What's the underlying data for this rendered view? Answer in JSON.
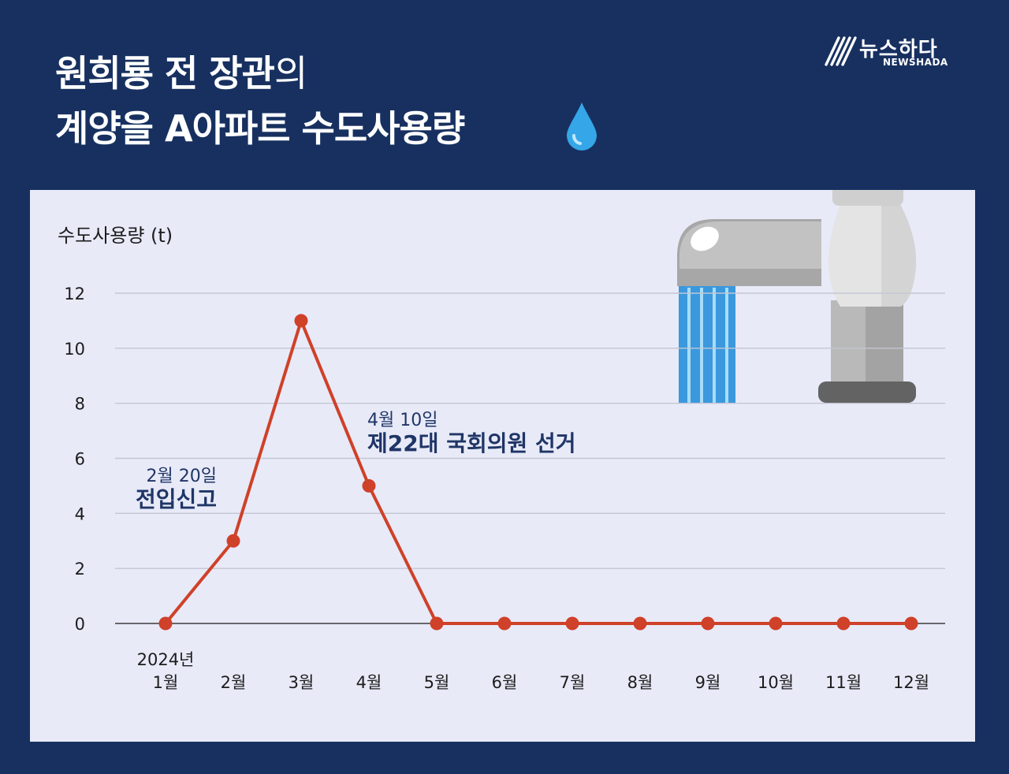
{
  "header": {
    "title_line1_bold": "원희룡 전 장관",
    "title_line1_light": "의",
    "title_line2": "계양을 A아파트 수도사용량",
    "drop_icon": "water-drop-icon"
  },
  "logo": {
    "name": "뉴스하다",
    "sub": "NEWSHADA",
    "icon": "slash-stripes-icon"
  },
  "colors": {
    "background": "#173060",
    "panel": "#e8eaf8",
    "line": "#cf4128",
    "annotation": "#1f3566"
  },
  "chart_data": {
    "type": "line",
    "ylabel": "수도사용량 (t)",
    "ylim": [
      0,
      12
    ],
    "yticks": [
      0,
      2,
      4,
      6,
      8,
      10,
      12
    ],
    "year_label": "2024년",
    "categories": [
      "1월",
      "2월",
      "3월",
      "4월",
      "5월",
      "6월",
      "7월",
      "8월",
      "9월",
      "10월",
      "11월",
      "12월"
    ],
    "values": [
      0,
      3,
      11,
      5,
      0,
      0,
      0,
      0,
      0,
      0,
      0,
      0
    ],
    "grid": true,
    "annotations": [
      {
        "date": "2월 20일",
        "label": "전입신고"
      },
      {
        "date": "4월 10일",
        "label": "제22대 국회의원 선거"
      }
    ],
    "illustration": "faucet-icon"
  }
}
